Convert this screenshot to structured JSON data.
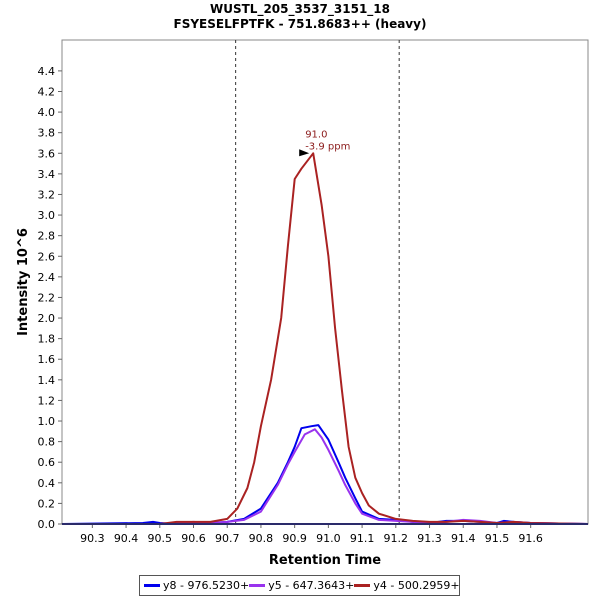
{
  "chart_data": {
    "type": "line",
    "title": "WUSTL_205_3537_3151_18",
    "subtitle": "FSYESELFPTFK - 751.8683++ (heavy)",
    "xlabel": "Retention Time",
    "ylabel": "Intensity 10^6",
    "xlim": [
      90.21,
      91.77
    ],
    "ylim": [
      0,
      4.7
    ],
    "xticks": [
      "90.3",
      "90.4",
      "90.5",
      "90.6",
      "90.7",
      "90.8",
      "90.9",
      "91.0",
      "91.1",
      "91.2",
      "91.3",
      "91.4",
      "91.5",
      "91.6"
    ],
    "yticks": [
      "0.0",
      "0.2",
      "0.4",
      "0.6",
      "0.8",
      "1.0",
      "1.2",
      "1.4",
      "1.6",
      "1.8",
      "2.0",
      "2.2",
      "2.4",
      "2.6",
      "2.8",
      "3.0",
      "3.2",
      "3.4",
      "3.6",
      "3.8",
      "4.0",
      "4.2",
      "4.4"
    ],
    "vlines": [
      90.725,
      91.21
    ],
    "grid": false,
    "legend_position": "bottom",
    "annotation": {
      "x": 90.955,
      "y": 3.6,
      "lines": [
        "91.0",
        "-3.9 ppm"
      ],
      "color": "#8b1a1a"
    },
    "series": [
      {
        "name": "y8 - 976.5230+",
        "color": "#0000ee",
        "x": [
          90.21,
          90.45,
          90.48,
          90.5,
          90.55,
          90.6,
          90.65,
          90.7,
          90.75,
          90.8,
          90.85,
          90.88,
          90.9,
          90.92,
          90.95,
          90.97,
          91.0,
          91.03,
          91.05,
          91.08,
          91.1,
          91.15,
          91.2,
          91.25,
          91.3,
          91.35,
          91.4,
          91.45,
          91.5,
          91.52,
          91.55,
          91.6,
          91.77
        ],
        "y": [
          0.0,
          0.01,
          0.02,
          0.01,
          0.0,
          0.01,
          0.01,
          0.02,
          0.05,
          0.15,
          0.4,
          0.6,
          0.75,
          0.93,
          0.95,
          0.96,
          0.82,
          0.6,
          0.45,
          0.25,
          0.12,
          0.05,
          0.04,
          0.02,
          0.01,
          0.03,
          0.03,
          0.02,
          0.01,
          0.03,
          0.02,
          0.01,
          0.0
        ]
      },
      {
        "name": "y5 - 647.3643+",
        "color": "#9933ee",
        "x": [
          90.21,
          90.5,
          90.55,
          90.6,
          90.65,
          90.7,
          90.75,
          90.8,
          90.85,
          90.88,
          90.9,
          90.93,
          90.96,
          90.98,
          91.0,
          91.03,
          91.05,
          91.08,
          91.1,
          91.15,
          91.2,
          91.25,
          91.3,
          91.35,
          91.4,
          91.45,
          91.5,
          91.55,
          91.6,
          91.77
        ],
        "y": [
          0.0,
          0.0,
          0.01,
          0.02,
          0.01,
          0.02,
          0.04,
          0.12,
          0.38,
          0.58,
          0.7,
          0.87,
          0.92,
          0.84,
          0.72,
          0.52,
          0.38,
          0.2,
          0.1,
          0.04,
          0.03,
          0.02,
          0.01,
          0.02,
          0.04,
          0.03,
          0.01,
          0.02,
          0.01,
          0.0
        ]
      },
      {
        "name": "y4 - 500.2959+",
        "color": "#aa2222",
        "x": [
          90.21,
          90.5,
          90.55,
          90.6,
          90.65,
          90.7,
          90.73,
          90.76,
          90.78,
          90.8,
          90.83,
          90.86,
          90.88,
          90.9,
          90.92,
          90.955,
          90.98,
          91.0,
          91.02,
          91.04,
          91.06,
          91.08,
          91.1,
          91.12,
          91.15,
          91.2,
          91.25,
          91.3,
          91.35,
          91.4,
          91.45,
          91.5,
          91.55,
          91.6,
          91.77
        ],
        "y": [
          0.0,
          0.0,
          0.02,
          0.02,
          0.02,
          0.05,
          0.15,
          0.35,
          0.6,
          0.95,
          1.4,
          2.0,
          2.7,
          3.35,
          3.45,
          3.6,
          3.1,
          2.6,
          1.9,
          1.3,
          0.75,
          0.45,
          0.3,
          0.18,
          0.1,
          0.05,
          0.03,
          0.02,
          0.02,
          0.03,
          0.02,
          0.01,
          0.02,
          0.01,
          0.0
        ]
      }
    ]
  }
}
